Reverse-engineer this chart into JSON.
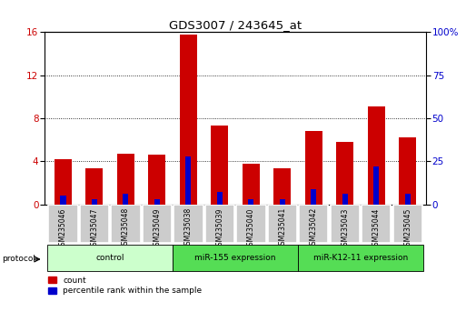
{
  "title": "GDS3007 / 243645_at",
  "categories": [
    "GSM235046",
    "GSM235047",
    "GSM235048",
    "GSM235049",
    "GSM235038",
    "GSM235039",
    "GSM235040",
    "GSM235041",
    "GSM235042",
    "GSM235043",
    "GSM235044",
    "GSM235045"
  ],
  "count_values": [
    4.2,
    3.4,
    4.7,
    4.6,
    15.8,
    7.3,
    3.8,
    3.4,
    6.8,
    5.8,
    9.1,
    6.2
  ],
  "percentile_values": [
    5.0,
    3.0,
    6.0,
    3.0,
    28.0,
    7.5,
    3.0,
    3.0,
    9.0,
    6.0,
    22.0,
    6.0
  ],
  "count_color": "#cc0000",
  "percentile_color": "#0000cc",
  "ylim_left": [
    0,
    16
  ],
  "ylim_right": [
    0,
    100
  ],
  "yticks_left": [
    0,
    4,
    8,
    12,
    16
  ],
  "yticks_right": [
    0,
    25,
    50,
    75,
    100
  ],
  "ytick_labels_right": [
    "0",
    "25",
    "50",
    "75",
    "100%"
  ],
  "groups": [
    {
      "label": "control",
      "start": 0,
      "end": 4,
      "color": "#ccffcc"
    },
    {
      "label": "miR-155 expression",
      "start": 4,
      "end": 8,
      "color": "#44dd44"
    },
    {
      "label": "miR-K12-11 expression",
      "start": 8,
      "end": 12,
      "color": "#44dd44"
    }
  ],
  "group_colors": [
    "#ccffcc",
    "#55dd55",
    "#55dd55"
  ],
  "protocol_label": "protocol",
  "legend_count_label": "count",
  "legend_percentile_label": "percentile rank within the sample",
  "bar_width": 0.55,
  "blue_bar_width": 0.18,
  "background_color": "#ffffff"
}
